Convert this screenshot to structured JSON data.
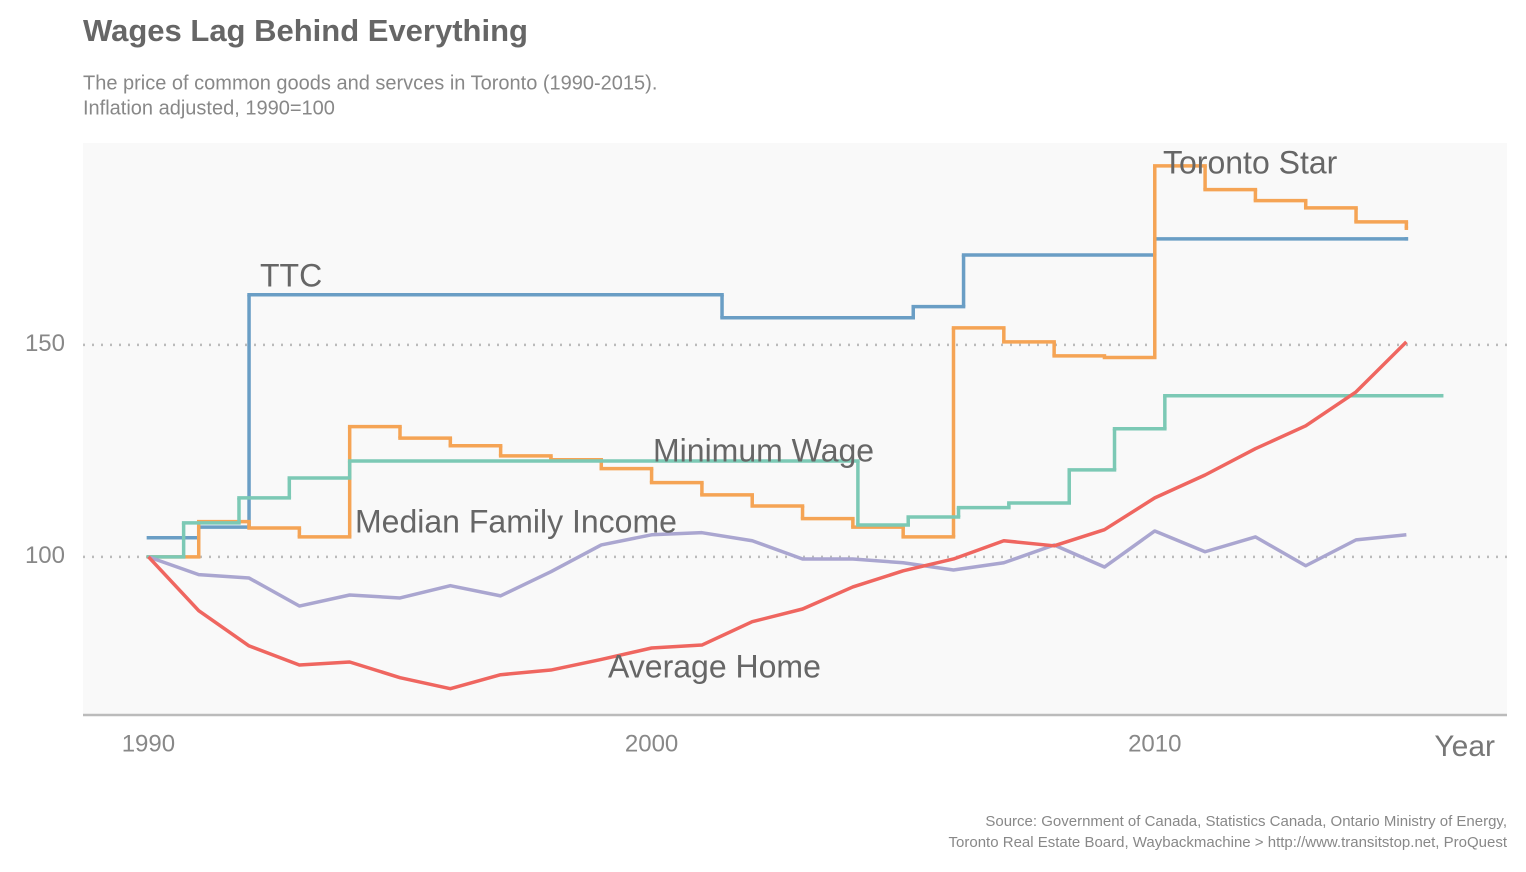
{
  "chart_data": {
    "type": "line",
    "title": "Wages Lag Behind Everything",
    "subtitle": [
      "The price of common goods and servces in Toronto (1990-2015).",
      "Inflation adjusted, 1990=100"
    ],
    "x_label": "Year",
    "source": [
      "Source: Government of Canada, Statistics Canada, Ontario Ministry of Energy,",
      "Toronto Real Estate Board, Waybackmachine > http://www.transitstop.net, ProQuest"
    ],
    "xlim": [
      1988.7,
      2017.0
    ],
    "xticks": [
      1990,
      2000,
      2010
    ],
    "ylim": [
      62.7,
      197.6
    ],
    "yticks": [
      100,
      150
    ],
    "grid": true,
    "series": [
      {
        "name": "TTC",
        "color": "#6a9ec5",
        "step": true,
        "x": [
          1990,
          1991,
          1992,
          2001.4,
          2005.2,
          2006.2,
          2010,
          2015
        ],
        "values": [
          104.5,
          107,
          161.8,
          156.4,
          159,
          171.2,
          175,
          175
        ]
      },
      {
        "name": "Toronto Star",
        "color": "#f5a455",
        "step": true,
        "x": [
          1990,
          1991,
          1992,
          1993,
          1994,
          1995,
          1996,
          1997,
          1998,
          1999,
          2000,
          2001,
          2002,
          2003,
          2004,
          2005,
          2006,
          2007,
          2008,
          2009,
          2010,
          2011,
          2012,
          2013,
          2014,
          2015
        ],
        "values": [
          100,
          108.3,
          106.8,
          104.7,
          130.7,
          128,
          126.2,
          123.8,
          122.9,
          120.8,
          117.5,
          114.6,
          112,
          109,
          107,
          104.7,
          154,
          150.7,
          147.4,
          147,
          192.2,
          186.6,
          184,
          182.3,
          179,
          177.5
        ]
      },
      {
        "name": "Minimum Wage",
        "color": "#7cc9b5",
        "step": true,
        "x": [
          1990,
          1990.7,
          1991.8,
          1992.8,
          1994,
          2004.1,
          2005.1,
          2006.1,
          2007.1,
          2008.3,
          2009.2,
          2010.2,
          2015.7
        ],
        "values": [
          100,
          108,
          113.9,
          118.6,
          122.6,
          107.5,
          109.4,
          111.6,
          112.7,
          120.5,
          130.2,
          138,
          138
        ]
      },
      {
        "name": "Median Family Income",
        "color": "#aaa6d0",
        "step": false,
        "x": [
          1990,
          1991,
          1992,
          1993,
          1994,
          1995,
          1996,
          1997,
          1998,
          1999,
          2000,
          2001,
          2002,
          2003,
          2004,
          2005,
          2006,
          2007,
          2008,
          2009,
          2010,
          2011,
          2012,
          2013,
          2014,
          2015
        ],
        "values": [
          100,
          95.8,
          95,
          88.4,
          91,
          90.3,
          93.2,
          90.8,
          96.5,
          102.8,
          105.2,
          105.7,
          103.8,
          99.5,
          99.5,
          98.6,
          96.9,
          98.6,
          102.8,
          97.6,
          106.1,
          101.2,
          104.7,
          97.9,
          104,
          105.2
        ]
      },
      {
        "name": "Average Home",
        "color": "#ef6660",
        "step": false,
        "x": [
          1990,
          1991,
          1992,
          1993,
          1994,
          1995,
          1996,
          1997,
          1998,
          1999,
          2000,
          2001,
          2002,
          2003,
          2004,
          2005,
          2006,
          2007,
          2008,
          2009,
          2010,
          2011,
          2012,
          2013,
          2014,
          2015
        ],
        "values": [
          100,
          87.3,
          79,
          74.5,
          75.2,
          71.5,
          68.9,
          72.2,
          73.3,
          75.8,
          78.5,
          79.2,
          84.7,
          87.7,
          92.9,
          96.7,
          99.5,
          103.8,
          102.6,
          106.4,
          113.9,
          119.3,
          125.5,
          130.9,
          138.9,
          150.7
        ]
      }
    ]
  }
}
